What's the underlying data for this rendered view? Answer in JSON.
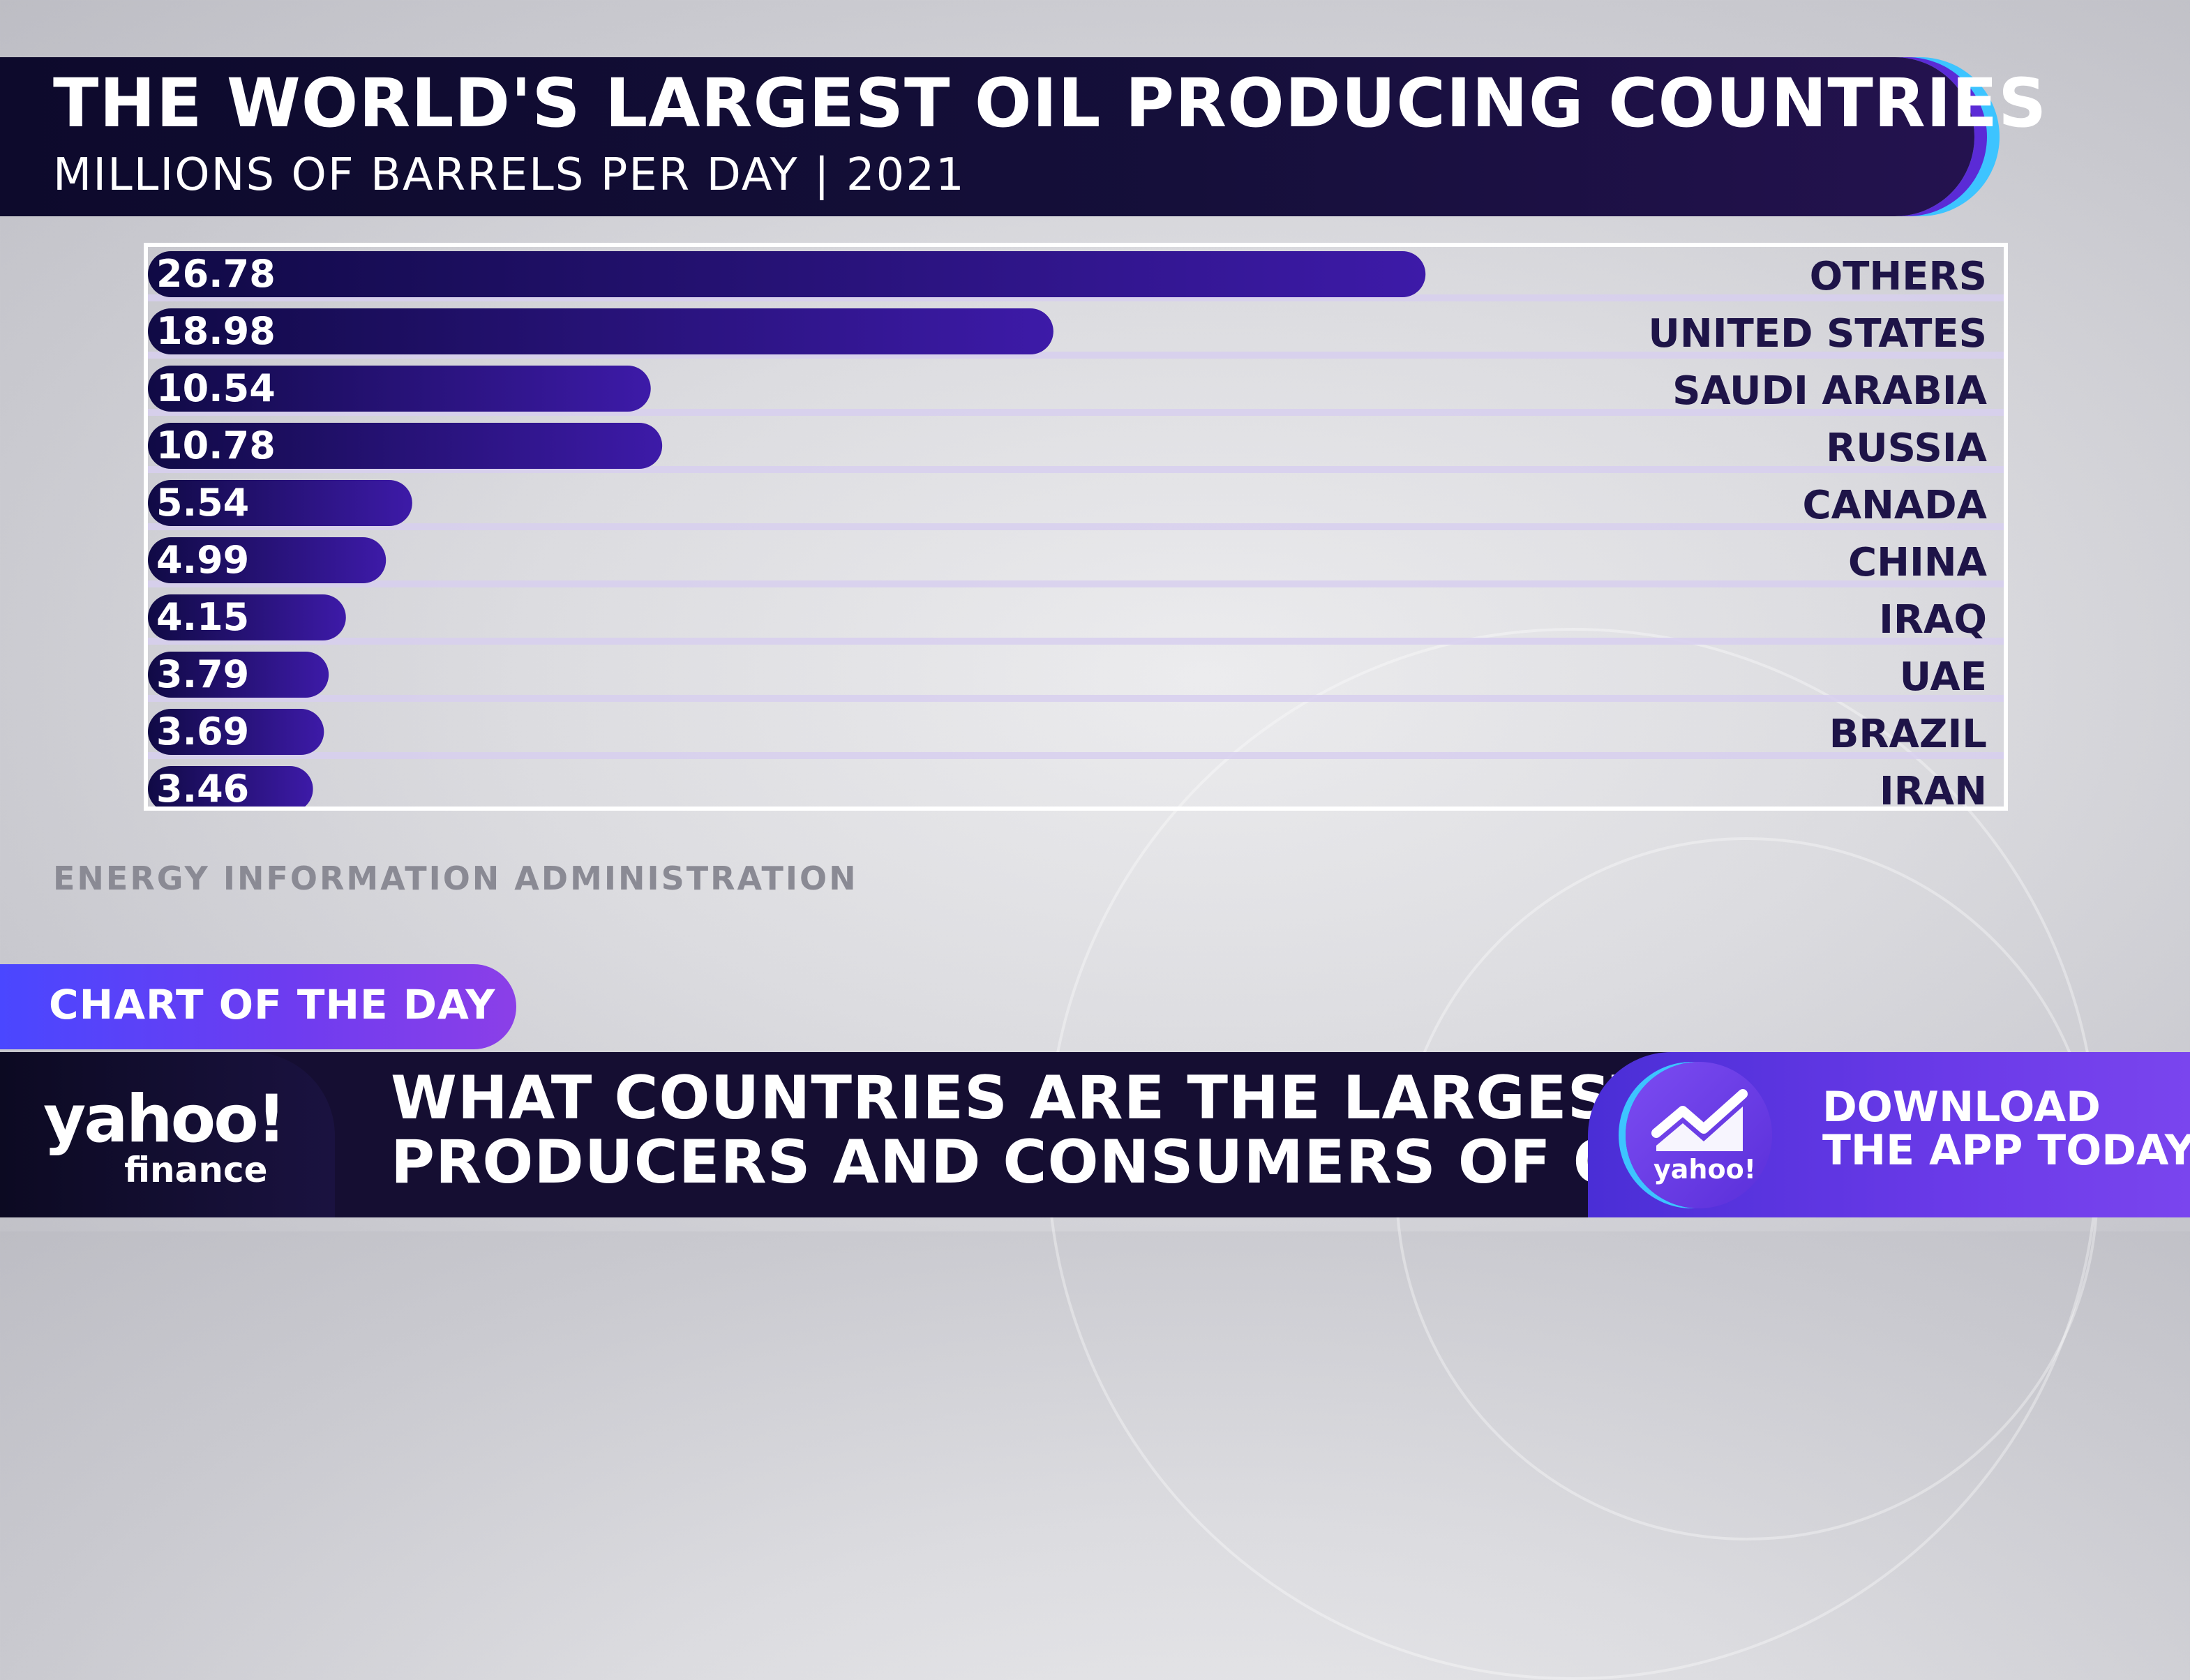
{
  "chart_data": {
    "type": "bar",
    "orientation": "horizontal",
    "title": "THE WORLD'S LARGEST OIL PRODUCING COUNTRIES",
    "subtitle": "MILLIONS OF BARRELS PER DAY | 2021",
    "categories": [
      "OTHERS",
      "UNITED STATES",
      "SAUDI ARABIA",
      "RUSSIA",
      "CANADA",
      "CHINA",
      "IRAQ",
      "UAE",
      "BRAZIL",
      "IRAN"
    ],
    "values": [
      26.78,
      18.98,
      10.54,
      10.78,
      5.54,
      4.99,
      4.15,
      3.79,
      3.69,
      3.46
    ],
    "value_labels": [
      "26.78",
      "18.98",
      "10.54",
      "10.78",
      "5.54",
      "4.99",
      "4.15",
      "3.79",
      "3.69",
      "3.46"
    ],
    "xlim": [
      0,
      38.9
    ],
    "grid": false,
    "legend": "none",
    "bar_color_start": "#100a45",
    "bar_color_end": "#3d1aa8"
  },
  "source": "ENERGY INFORMATION ADMINISTRATION",
  "segment_label": "CHART OF THE DAY",
  "brand": {
    "logo_main": "yahoo!",
    "logo_sub": "finance"
  },
  "headline": {
    "line1": "WHAT COUNTRIES ARE THE LARGEST",
    "line2": "PRODUCERS AND CONSUMERS OF OIL"
  },
  "app_promo": {
    "icon": "chart-up-icon",
    "logo": "yahoo!",
    "line1": "DOWNLOAD",
    "line2": "THE APP TODAY"
  },
  "colors": {
    "title_bar": "#0d0a2c",
    "accent_purple": "#5b2bd6",
    "accent_cyan": "#3dc4ff",
    "segment_blue": "#4a47ff",
    "lower_third": "#150e32"
  }
}
